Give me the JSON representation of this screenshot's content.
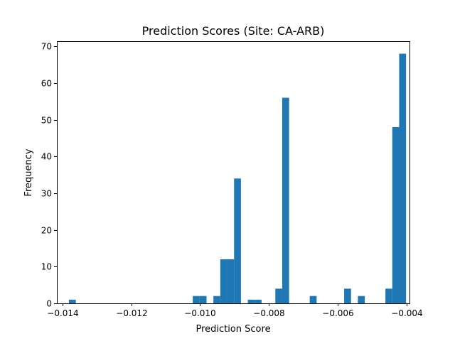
{
  "chart_data": {
    "type": "bar",
    "title": "Prediction Scores (Site: CA-ARB)",
    "xlabel": "Prediction Score",
    "ylabel": "Frequency",
    "xlim": [
      -0.01416,
      -0.00391
    ],
    "ylim": [
      0,
      71.4
    ],
    "grid": false,
    "bar_color": "#1f77b4",
    "bin_width": 0.0002,
    "x_ticks": [
      -0.014,
      -0.012,
      -0.01,
      -0.008,
      -0.006,
      -0.004
    ],
    "x_tick_labels": [
      "−0.014",
      "−0.012",
      "−0.010",
      "−0.008",
      "−0.006",
      "−0.004"
    ],
    "y_ticks": [
      0,
      10,
      20,
      30,
      40,
      50,
      60,
      70
    ],
    "y_tick_labels": [
      "0",
      "10",
      "20",
      "30",
      "40",
      "50",
      "60",
      "70"
    ],
    "bins": [
      {
        "x0": -0.01381,
        "x1": -0.01361,
        "count": 1
      },
      {
        "x0": -0.01021,
        "x1": -0.01001,
        "count": 2
      },
      {
        "x0": -0.01001,
        "x1": -0.00981,
        "count": 2
      },
      {
        "x0": -0.00961,
        "x1": -0.00941,
        "count": 2
      },
      {
        "x0": -0.00941,
        "x1": -0.00921,
        "count": 12
      },
      {
        "x0": -0.00921,
        "x1": -0.00901,
        "count": 12
      },
      {
        "x0": -0.00901,
        "x1": -0.00881,
        "count": 34
      },
      {
        "x0": -0.00861,
        "x1": -0.00841,
        "count": 1
      },
      {
        "x0": -0.00841,
        "x1": -0.00821,
        "count": 1
      },
      {
        "x0": -0.00781,
        "x1": -0.00761,
        "count": 4
      },
      {
        "x0": -0.00761,
        "x1": -0.00741,
        "count": 56
      },
      {
        "x0": -0.00681,
        "x1": -0.00661,
        "count": 2
      },
      {
        "x0": -0.00581,
        "x1": -0.00561,
        "count": 4
      },
      {
        "x0": -0.00541,
        "x1": -0.00521,
        "count": 2
      },
      {
        "x0": -0.00461,
        "x1": -0.00441,
        "count": 4
      },
      {
        "x0": -0.00441,
        "x1": -0.00421,
        "count": 48
      },
      {
        "x0": -0.00421,
        "x1": -0.00401,
        "count": 68
      }
    ]
  }
}
